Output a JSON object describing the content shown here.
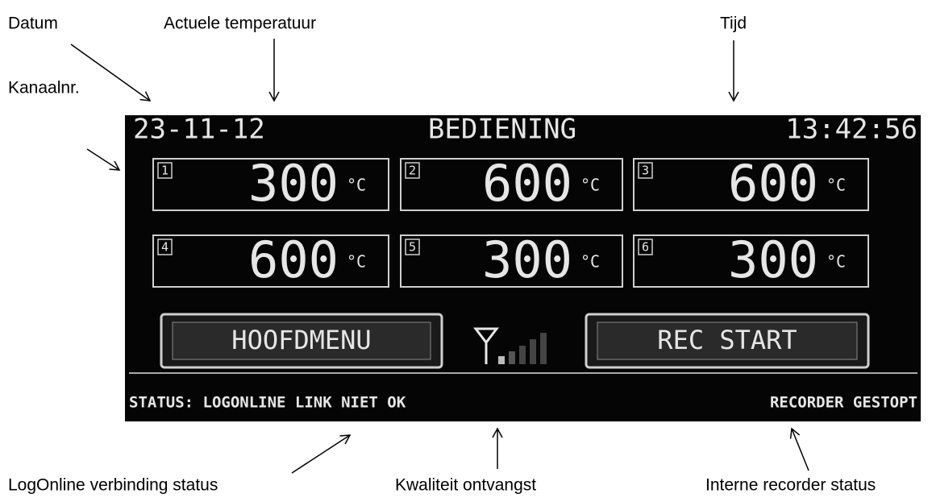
{
  "annotations": {
    "date": "Datum",
    "temperature": "Actuele temperatuur",
    "time": "Tijd",
    "channel": "Kanaalnr.",
    "link": "LogOnline verbinding status",
    "signal": "Kwaliteit ontvangst",
    "recorder": "Interne recorder status"
  },
  "screen": {
    "date": "23-11-12",
    "title": "BEDIENING",
    "time": "13:42:56",
    "unit": "°C",
    "channels": [
      {
        "number": 1,
        "value": 300
      },
      {
        "number": 2,
        "value": 600
      },
      {
        "number": 3,
        "value": 600
      },
      {
        "number": 4,
        "value": 600
      },
      {
        "number": 5,
        "value": 300
      },
      {
        "number": 6,
        "value": 300
      }
    ],
    "buttons": [
      "HOOFDMENU",
      "REC START"
    ],
    "status": "STATUS: LOGONLINE LINK NIET OK",
    "recorder_status": "RECORDER GESTOPT"
  }
}
